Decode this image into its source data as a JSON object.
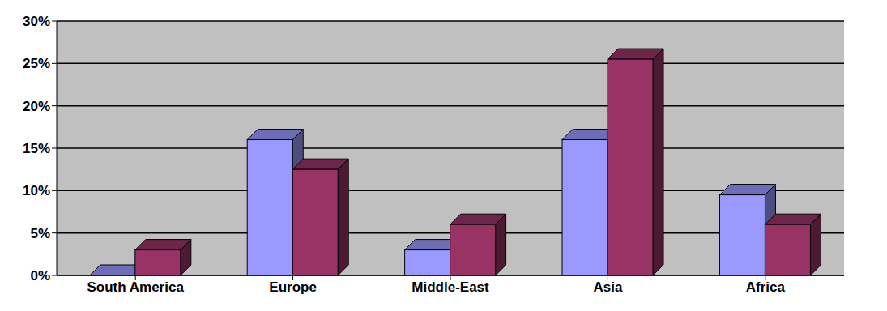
{
  "chart_data": {
    "type": "bar",
    "categories": [
      "South America",
      "Europe",
      "Middle-East",
      "Asia",
      "Africa"
    ],
    "series": [
      {
        "color": "#9999ff",
        "values": [
          0,
          16,
          3,
          16,
          9.5
        ]
      },
      {
        "color": "#993366",
        "values": [
          3,
          12.5,
          6,
          25.5,
          6
        ]
      }
    ],
    "ylim": [
      0,
      30
    ],
    "yticks": [
      {
        "value": 0,
        "label": "0%"
      },
      {
        "value": 5,
        "label": "5%"
      },
      {
        "value": 10,
        "label": "10%"
      },
      {
        "value": 15,
        "label": "15%"
      },
      {
        "value": 20,
        "label": "20%"
      },
      {
        "value": 25,
        "label": "25%"
      },
      {
        "value": 30,
        "label": "30%"
      }
    ],
    "grid": true
  }
}
